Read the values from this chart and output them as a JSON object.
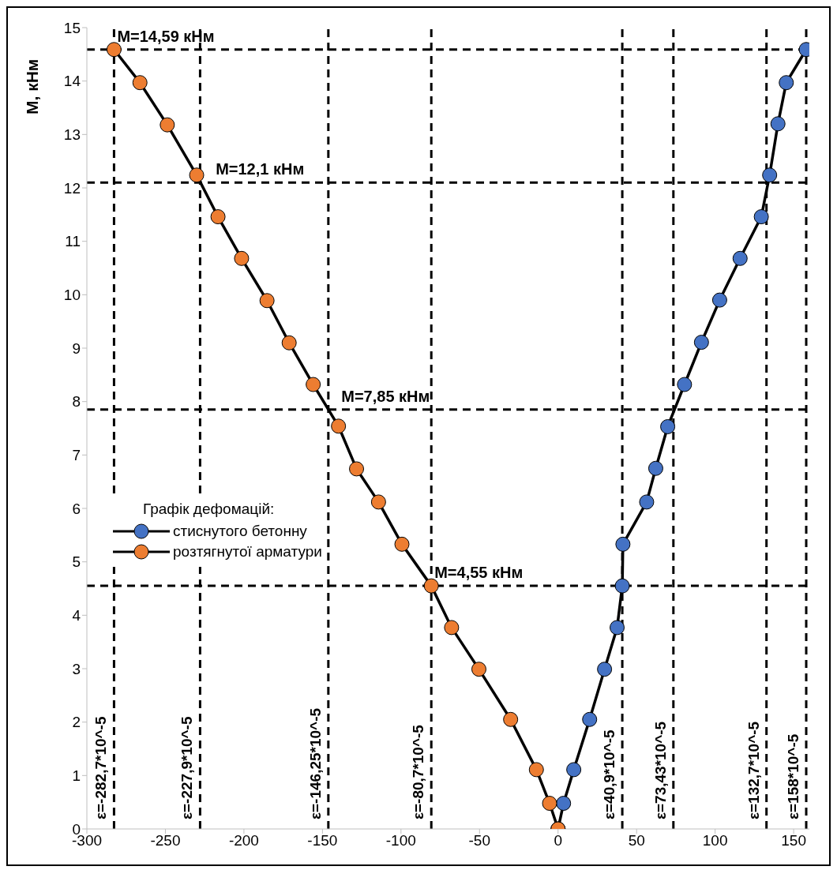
{
  "chart_data": {
    "type": "line",
    "ylabel": "M, кНм",
    "legend_title": "Графік дефомацій:",
    "legend": "left",
    "grid": false,
    "marker": "circle",
    "line_style": "solid",
    "xlim": [
      -300,
      160
    ],
    "xticks": [
      -300,
      -250,
      -200,
      -150,
      -100,
      -50,
      0,
      50,
      100,
      150
    ],
    "ylim": [
      0,
      15
    ],
    "yticks": [
      0,
      1,
      2,
      3,
      4,
      5,
      6,
      7,
      8,
      9,
      10,
      11,
      12,
      13,
      14,
      15
    ],
    "series": [
      {
        "name": "стиснутого бетонну",
        "color": "#4472c4",
        "x": [
          0,
          3.5,
          10,
          20.1,
          29.6,
          37.6,
          40.9,
          41.3,
          56.4,
          62.2,
          69.8,
          80.5,
          91.3,
          102.9,
          115.9,
          129.4,
          134.7,
          140,
          145.3,
          158
        ],
        "values": [
          0,
          0.48,
          1.11,
          2.05,
          2.99,
          3.77,
          4.55,
          5.33,
          6.12,
          6.75,
          7.53,
          8.32,
          9.11,
          9.9,
          10.68,
          11.46,
          12.24,
          13.2,
          13.97,
          14.59
        ]
      },
      {
        "name": "розтягнутої арматури",
        "color": "#ed7d31",
        "x": [
          0,
          -5.4,
          -13.8,
          -30.2,
          -50.4,
          -67.8,
          -80.7,
          -99.4,
          -114.3,
          -128.3,
          -139.8,
          -155.9,
          -171.2,
          -185.3,
          -201.5,
          -216.5,
          -230.1,
          -248.8,
          -266.2,
          -282.7
        ],
        "values": [
          0,
          0.48,
          1.11,
          2.05,
          2.99,
          3.77,
          4.55,
          5.33,
          6.12,
          6.74,
          7.54,
          8.32,
          9.1,
          9.89,
          10.68,
          11.46,
          12.24,
          13.18,
          13.97,
          14.59
        ]
      }
    ],
    "ref_lines": [
      {
        "axis": "x",
        "value": -282.7,
        "label": "ε=-282,7*10^-5",
        "line_style": "dashed",
        "color": "#000000"
      },
      {
        "axis": "x",
        "value": -227.9,
        "label": "ε=-227,9*10^-5",
        "line_style": "dashed",
        "color": "#000000"
      },
      {
        "axis": "x",
        "value": -146.25,
        "label": "ε=-146,25*10^-5",
        "line_style": "dashed",
        "color": "#000000"
      },
      {
        "axis": "x",
        "value": -80.7,
        "label": "ε=-80,7*10^-5",
        "line_style": "dashed",
        "color": "#000000"
      },
      {
        "axis": "x",
        "value": 40.9,
        "label": "ε=40,9*10^-5",
        "line_style": "dashed",
        "color": "#000000"
      },
      {
        "axis": "x",
        "value": 73.43,
        "label": "ε=73,43*10^-5",
        "line_style": "dashed",
        "color": "#000000"
      },
      {
        "axis": "x",
        "value": 132.7,
        "label": "ε=132,7*10^-5",
        "line_style": "dashed",
        "color": "#000000"
      },
      {
        "axis": "x",
        "value": 158,
        "label": "ε=158*10^-5",
        "line_style": "dashed",
        "color": "#000000"
      },
      {
        "axis": "y",
        "value": 14.59,
        "line_style": "dashed",
        "color": "#000000"
      },
      {
        "axis": "y",
        "value": 12.1,
        "line_style": "dashed",
        "color": "#000000"
      },
      {
        "axis": "y",
        "value": 7.85,
        "line_style": "dashed",
        "color": "#000000"
      },
      {
        "axis": "y",
        "value": 4.55,
        "line_style": "dashed",
        "color": "#000000"
      }
    ],
    "annotations": [
      {
        "text": "M=14,59 кНм",
        "x": -282.7,
        "y": 14.59
      },
      {
        "text": "M=12,1 кНм",
        "x": -220,
        "y": 12.1
      },
      {
        "text": "M=7,85 кНм",
        "x": -140,
        "y": 7.85
      },
      {
        "text": "M=4,55 кНм",
        "x": -80.7,
        "y": 4.55
      }
    ]
  }
}
